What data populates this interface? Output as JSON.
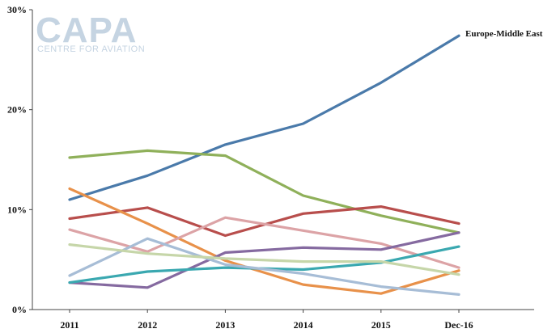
{
  "logo": {
    "main": "CAPA",
    "sub": "CENTRE FOR AVIATION"
  },
  "chart_data": {
    "type": "line",
    "title": "",
    "xlabel": "",
    "ylabel": "",
    "categories": [
      "2011",
      "2012",
      "2013",
      "2014",
      "2015",
      "Dec-16"
    ],
    "ylim": [
      0,
      30
    ],
    "yticks": [
      0,
      10,
      20,
      30
    ],
    "ytick_labels": [
      "0%",
      "10%",
      "20%",
      "30%"
    ],
    "grid": false,
    "legend": "none",
    "annotation": "Europe-Middle East",
    "series": [
      {
        "name": "Europe-Middle East",
        "color": "#4a7aaa",
        "values": [
          11.0,
          13.4,
          16.5,
          18.6,
          22.7,
          27.4
        ]
      },
      {
        "color": "#8fb05a",
        "values": [
          15.2,
          15.9,
          15.4,
          11.4,
          9.4,
          7.7
        ]
      },
      {
        "color": "#b84e4c",
        "values": [
          9.1,
          10.2,
          7.4,
          9.6,
          10.3,
          8.6
        ]
      },
      {
        "color": "#e8914a",
        "values": [
          12.1,
          8.6,
          4.9,
          2.5,
          1.6,
          3.9
        ]
      },
      {
        "color": "#dca3a6",
        "values": [
          8.0,
          5.8,
          9.2,
          7.9,
          6.6,
          4.2
        ]
      },
      {
        "color": "#856aa0",
        "values": [
          2.7,
          2.2,
          5.7,
          6.2,
          6.0,
          7.7
        ]
      },
      {
        "color": "#3aa8b0",
        "values": [
          2.7,
          3.8,
          4.2,
          4.0,
          4.7,
          6.3
        ]
      },
      {
        "color": "#a7bdd6",
        "values": [
          3.4,
          7.1,
          4.5,
          3.6,
          2.3,
          1.5
        ]
      },
      {
        "color": "#c6d6a9",
        "values": [
          6.5,
          5.6,
          5.1,
          4.8,
          4.8,
          3.5
        ]
      }
    ]
  }
}
